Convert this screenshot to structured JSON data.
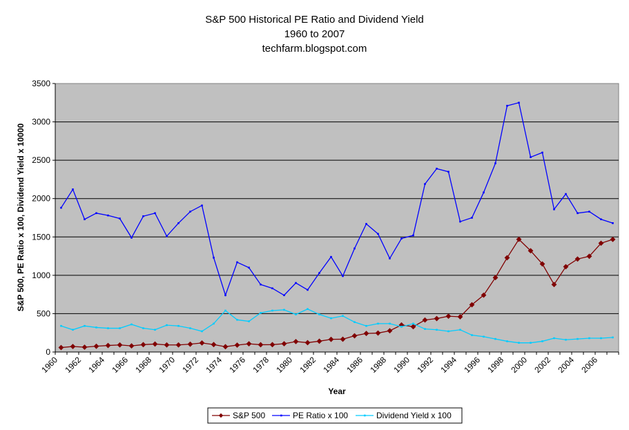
{
  "chart_data": {
    "type": "line",
    "title_lines": [
      "S&P 500 Historical PE Ratio and Dividend Yield",
      "1960 to 2007",
      "techfarm.blogspot.com"
    ],
    "xlabel": "Year",
    "ylabel": "S&P 500, PE Ratio x 100, Dividend Yield x 10000",
    "ylim": [
      0,
      3500
    ],
    "yticks": [
      0,
      500,
      1000,
      1500,
      2000,
      2500,
      3000,
      3500
    ],
    "x": [
      1960,
      1961,
      1962,
      1963,
      1964,
      1965,
      1966,
      1967,
      1968,
      1969,
      1970,
      1971,
      1972,
      1973,
      1974,
      1975,
      1976,
      1977,
      1978,
      1979,
      1980,
      1981,
      1982,
      1983,
      1984,
      1985,
      1986,
      1987,
      1988,
      1989,
      1990,
      1991,
      1992,
      1993,
      1994,
      1995,
      1996,
      1997,
      1998,
      1999,
      2000,
      2001,
      2002,
      2003,
      2004,
      2005,
      2006,
      2007
    ],
    "xtick_labels": [
      "1960",
      "1962",
      "1964",
      "1966",
      "1968",
      "1970",
      "1972",
      "1974",
      "1976",
      "1978",
      "1980",
      "1982",
      "1984",
      "1986",
      "1988",
      "1990",
      "1992",
      "1994",
      "1996",
      "1998",
      "2000",
      "2002",
      "2004",
      "2006"
    ],
    "grid": true,
    "plot_background": "#c0c0c0",
    "legend_position": "bottom-center",
    "series": [
      {
        "name": "S&P 500",
        "color": "#800000",
        "marker": "diamond",
        "values": [
          58,
          72,
          63,
          75,
          85,
          92,
          80,
          96,
          104,
          92,
          92,
          102,
          118,
          97,
          69,
          90,
          107,
          95,
          96,
          108,
          136,
          122,
          141,
          165,
          167,
          211,
          242,
          247,
          277,
          353,
          330,
          417,
          436,
          467,
          459,
          616,
          741,
          970,
          1229,
          1469,
          1320,
          1148,
          880,
          1112,
          1212,
          1248,
          1418,
          1468
        ]
      },
      {
        "name": "PE Ratio x 100",
        "color": "#0000ff",
        "marker": "dot",
        "values": [
          1880,
          2120,
          1730,
          1810,
          1780,
          1740,
          1490,
          1770,
          1810,
          1510,
          1680,
          1830,
          1910,
          1230,
          740,
          1170,
          1100,
          880,
          830,
          740,
          900,
          810,
          1030,
          1240,
          990,
          1350,
          1670,
          1540,
          1220,
          1480,
          1520,
          2190,
          2390,
          2350,
          1700,
          1750,
          2080,
          2460,
          3210,
          3250,
          2540,
          2600,
          1860,
          2060,
          1810,
          1830,
          1730,
          1680
        ]
      },
      {
        "name": "Dividend Yield x 100",
        "color": "#00ccff",
        "marker": "dot",
        "values": [
          340,
          290,
          340,
          320,
          310,
          310,
          360,
          310,
          290,
          350,
          340,
          310,
          270,
          370,
          540,
          420,
          400,
          510,
          540,
          550,
          490,
          560,
          490,
          440,
          470,
          390,
          340,
          370,
          370,
          330,
          370,
          300,
          290,
          270,
          290,
          220,
          200,
          170,
          140,
          120,
          120,
          140,
          180,
          160,
          170,
          180,
          180,
          190
        ]
      }
    ]
  }
}
